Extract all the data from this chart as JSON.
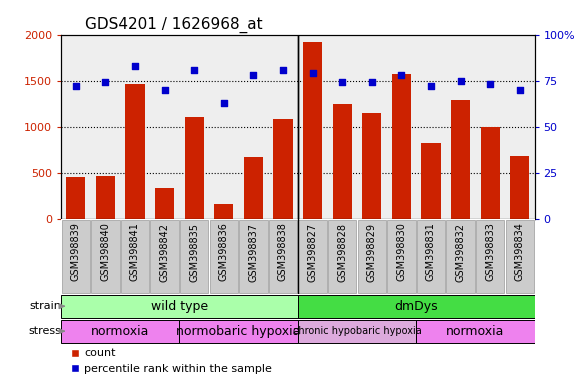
{
  "title": "GDS4201 / 1626968_at",
  "samples": [
    "GSM398839",
    "GSM398840",
    "GSM398841",
    "GSM398842",
    "GSM398835",
    "GSM398836",
    "GSM398837",
    "GSM398838",
    "GSM398827",
    "GSM398828",
    "GSM398829",
    "GSM398830",
    "GSM398831",
    "GSM398832",
    "GSM398833",
    "GSM398834"
  ],
  "counts": [
    450,
    460,
    1460,
    330,
    1110,
    160,
    670,
    1080,
    1920,
    1250,
    1150,
    1570,
    820,
    1290,
    1000,
    680
  ],
  "percentile_ranks": [
    72,
    74,
    83,
    70,
    81,
    63,
    78,
    81,
    79,
    74,
    74,
    78,
    72,
    75,
    73,
    70
  ],
  "ylim_left": [
    0,
    2000
  ],
  "ylim_right": [
    0,
    100
  ],
  "yticks_left": [
    0,
    500,
    1000,
    1500,
    2000
  ],
  "ytick_labels_right": [
    "0",
    "25",
    "50",
    "75",
    "100%"
  ],
  "ytick_vals_right": [
    0,
    25,
    50,
    75,
    100
  ],
  "strain_groups": [
    {
      "label": "wild type",
      "start": 0,
      "end": 8,
      "color": "#AAFFAA"
    },
    {
      "label": "dmDys",
      "start": 8,
      "end": 16,
      "color": "#44DD44"
    }
  ],
  "stress_groups": [
    {
      "label": "normoxia",
      "start": 0,
      "end": 4,
      "color": "#EE82EE"
    },
    {
      "label": "normobaric hypoxia",
      "start": 4,
      "end": 8,
      "color": "#EE82EE"
    },
    {
      "label": "chronic hypobaric hypoxia",
      "start": 8,
      "end": 12,
      "color": "#DDAADD"
    },
    {
      "label": "normoxia",
      "start": 12,
      "end": 16,
      "color": "#EE82EE"
    }
  ],
  "bar_color": "#CC2200",
  "dot_color": "#0000CC",
  "left_axis_color": "#CC2200",
  "right_axis_color": "#0000CC",
  "bg_color": "#FFFFFF",
  "plot_bg": "#EEEEEE",
  "tick_box_color": "#CCCCCC",
  "label_fontsize": 7,
  "strain_label_fontsize": 9,
  "stress_label_fontsize": 9,
  "stress_small_fontsize": 7
}
